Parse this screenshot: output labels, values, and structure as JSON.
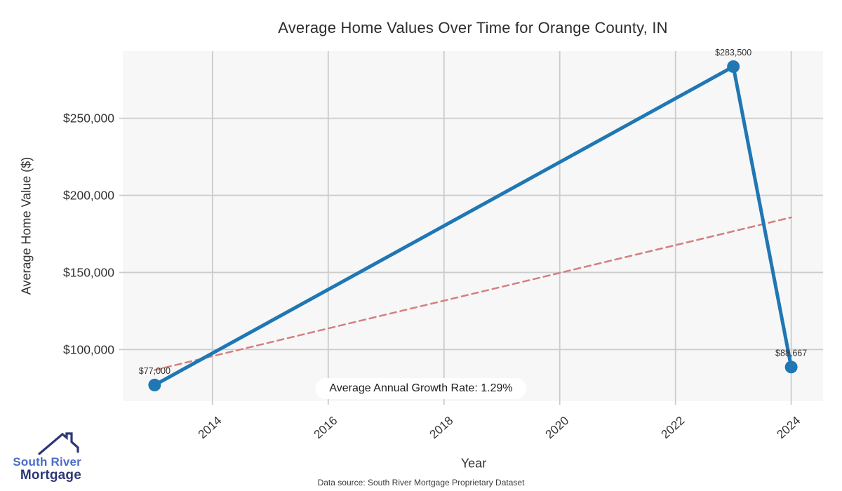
{
  "page": {
    "footer": "Data source: South River Mortgage Proprietary Dataset"
  },
  "logo": {
    "line1": "South River",
    "line2": "Mortgage",
    "text_color_primary": "#4a6bc9",
    "text_color_secondary": "#2c3775"
  },
  "chart_data": {
    "type": "line",
    "title": "Average Home Values Over Time for Orange County, IN",
    "xlabel": "Year",
    "ylabel": "Average Home Value ($)",
    "annotation": "Average Annual Growth Rate: 1.29%",
    "series": [
      {
        "name": "Linear trend",
        "style": "dashed",
        "color": "#d48080",
        "x": [
          2013,
          2024
        ],
        "values": [
          86708,
          185730
        ]
      },
      {
        "name": "Average Home Value",
        "style": "solid",
        "color": "#1f77b4",
        "x": [
          2013,
          2023,
          2024
        ],
        "values": [
          77000,
          283500,
          88667
        ],
        "point_labels": [
          "$77,000",
          "$283,500",
          "$88,667"
        ]
      }
    ],
    "x_ticks": [
      2014,
      2016,
      2018,
      2020,
      2022,
      2024
    ],
    "y_ticks": [
      {
        "value": 100000,
        "label": "$100,000"
      },
      {
        "value": 150000,
        "label": "$150,000"
      },
      {
        "value": 200000,
        "label": "$200,000"
      },
      {
        "value": 250000,
        "label": "$250,000"
      }
    ],
    "xlim": [
      2012.45,
      2024.55
    ],
    "ylim": [
      66500,
      293500
    ],
    "grid": true,
    "legend": false,
    "colors": {
      "grid": "#cccccc",
      "plot_bg": "#f7f7f7",
      "text": "#333333",
      "point_label": "#333333"
    }
  }
}
